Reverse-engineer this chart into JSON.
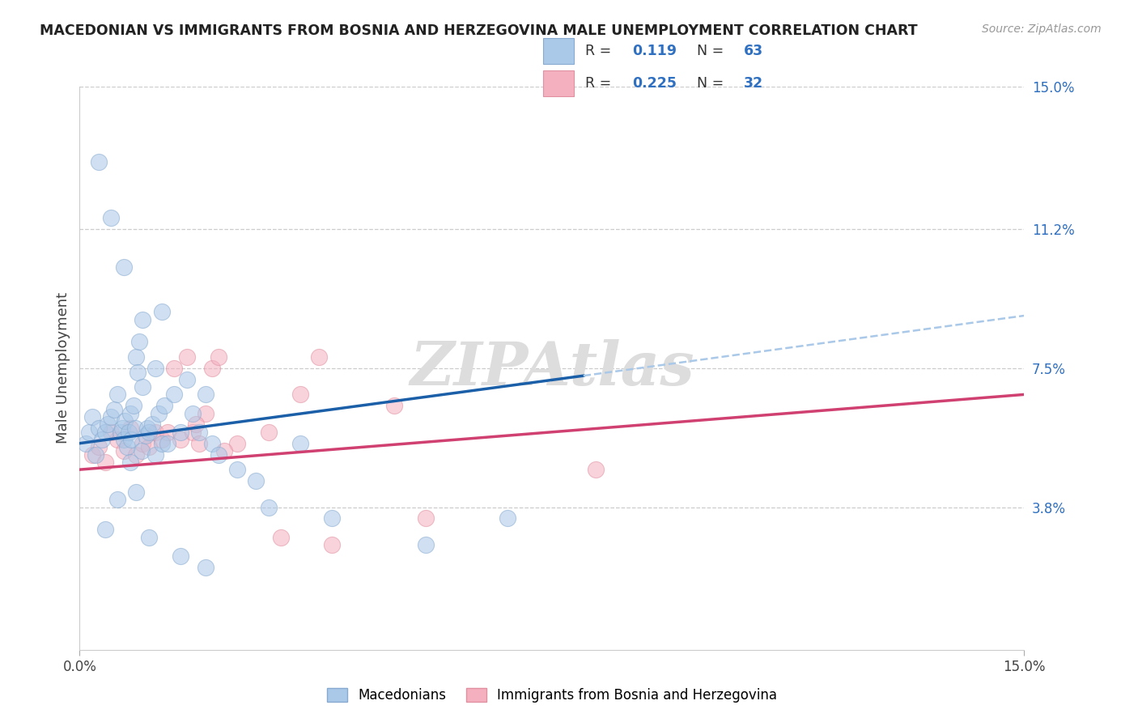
{
  "title": "MACEDONIAN VS IMMIGRANTS FROM BOSNIA AND HERZEGOVINA MALE UNEMPLOYMENT CORRELATION CHART",
  "source": "Source: ZipAtlas.com",
  "ylabel": "Male Unemployment",
  "r1": "0.119",
  "n1": "63",
  "r2": "0.225",
  "n2": "32",
  "color_blue_fill": "#aac8e8",
  "color_blue_edge": "#88aad0",
  "color_blue_line": "#1a5fa8",
  "color_blue_dashed": "#aac8e8",
  "color_pink_fill": "#f5b0c0",
  "color_pink_edge": "#e090a0",
  "color_pink_line": "#d04070",
  "color_grid": "#cccccc",
  "color_raxis": "#3070c0",
  "xmin": 0.0,
  "xmax": 15.0,
  "ymin": 0.0,
  "ymax": 15.0,
  "right_yticks": [
    3.8,
    7.5,
    11.2,
    15.0
  ],
  "right_ytick_labels": [
    "3.8%",
    "7.5%",
    "11.2%",
    "15.0%"
  ],
  "legend_label1": "Macedonians",
  "legend_label2": "Immigrants from Bosnia and Herzegovina",
  "macedonians_x": [
    0.1,
    0.15,
    0.2,
    0.25,
    0.3,
    0.35,
    0.4,
    0.45,
    0.5,
    0.55,
    0.6,
    0.65,
    0.68,
    0.7,
    0.72,
    0.75,
    0.78,
    0.8,
    0.82,
    0.85,
    0.88,
    0.9,
    0.92,
    0.95,
    0.98,
    1.0,
    1.05,
    1.08,
    1.1,
    1.15,
    1.2,
    1.25,
    1.3,
    1.35,
    1.4,
    1.5,
    1.6,
    1.7,
    1.8,
    1.9,
    2.0,
    2.1,
    2.2,
    2.5,
    2.8,
    3.0,
    3.5,
    4.0,
    5.5,
    6.8,
    0.3,
    0.5,
    0.7,
    0.9,
    1.1,
    1.3,
    1.6,
    2.0,
    0.4,
    0.6,
    0.8,
    1.0,
    1.2
  ],
  "macedonians_y": [
    5.5,
    5.8,
    6.2,
    5.2,
    5.9,
    5.6,
    5.8,
    6.0,
    6.2,
    6.4,
    6.8,
    5.8,
    5.9,
    5.6,
    6.1,
    5.4,
    5.8,
    6.3,
    5.6,
    6.5,
    5.9,
    7.8,
    7.4,
    8.2,
    5.3,
    7.0,
    5.7,
    5.9,
    5.8,
    6.0,
    5.2,
    6.3,
    5.5,
    6.5,
    5.5,
    6.8,
    5.8,
    7.2,
    6.3,
    5.8,
    6.8,
    5.5,
    5.2,
    4.8,
    4.5,
    3.8,
    5.5,
    3.5,
    2.8,
    3.5,
    13.0,
    11.5,
    10.2,
    4.2,
    3.0,
    9.0,
    2.5,
    2.2,
    3.2,
    4.0,
    5.0,
    8.8,
    7.5
  ],
  "bosnian_x": [
    0.2,
    0.3,
    0.4,
    0.5,
    0.6,
    0.7,
    0.8,
    0.9,
    1.0,
    1.1,
    1.2,
    1.3,
    1.4,
    1.5,
    1.6,
    1.7,
    1.8,
    1.9,
    2.0,
    2.1,
    2.2,
    2.5,
    3.0,
    3.5,
    3.8,
    5.0,
    5.5,
    8.2,
    2.3,
    3.2,
    4.0,
    1.85
  ],
  "bosnian_y": [
    5.2,
    5.4,
    5.0,
    5.8,
    5.6,
    5.3,
    5.9,
    5.2,
    5.5,
    5.4,
    5.8,
    5.6,
    5.8,
    7.5,
    5.6,
    7.8,
    5.8,
    5.5,
    6.3,
    7.5,
    7.8,
    5.5,
    5.8,
    6.8,
    7.8,
    6.5,
    3.5,
    4.8,
    5.3,
    3.0,
    2.8,
    6.0
  ],
  "blue_line_x0": 0.0,
  "blue_line_y0": 5.5,
  "blue_line_x1": 8.0,
  "blue_line_y1": 7.3,
  "blue_dash_x0": 8.0,
  "blue_dash_y0": 7.3,
  "blue_dash_x1": 15.0,
  "blue_dash_y1": 8.9,
  "pink_line_x0": 0.0,
  "pink_line_y0": 4.8,
  "pink_line_x1": 15.0,
  "pink_line_y1": 6.8
}
